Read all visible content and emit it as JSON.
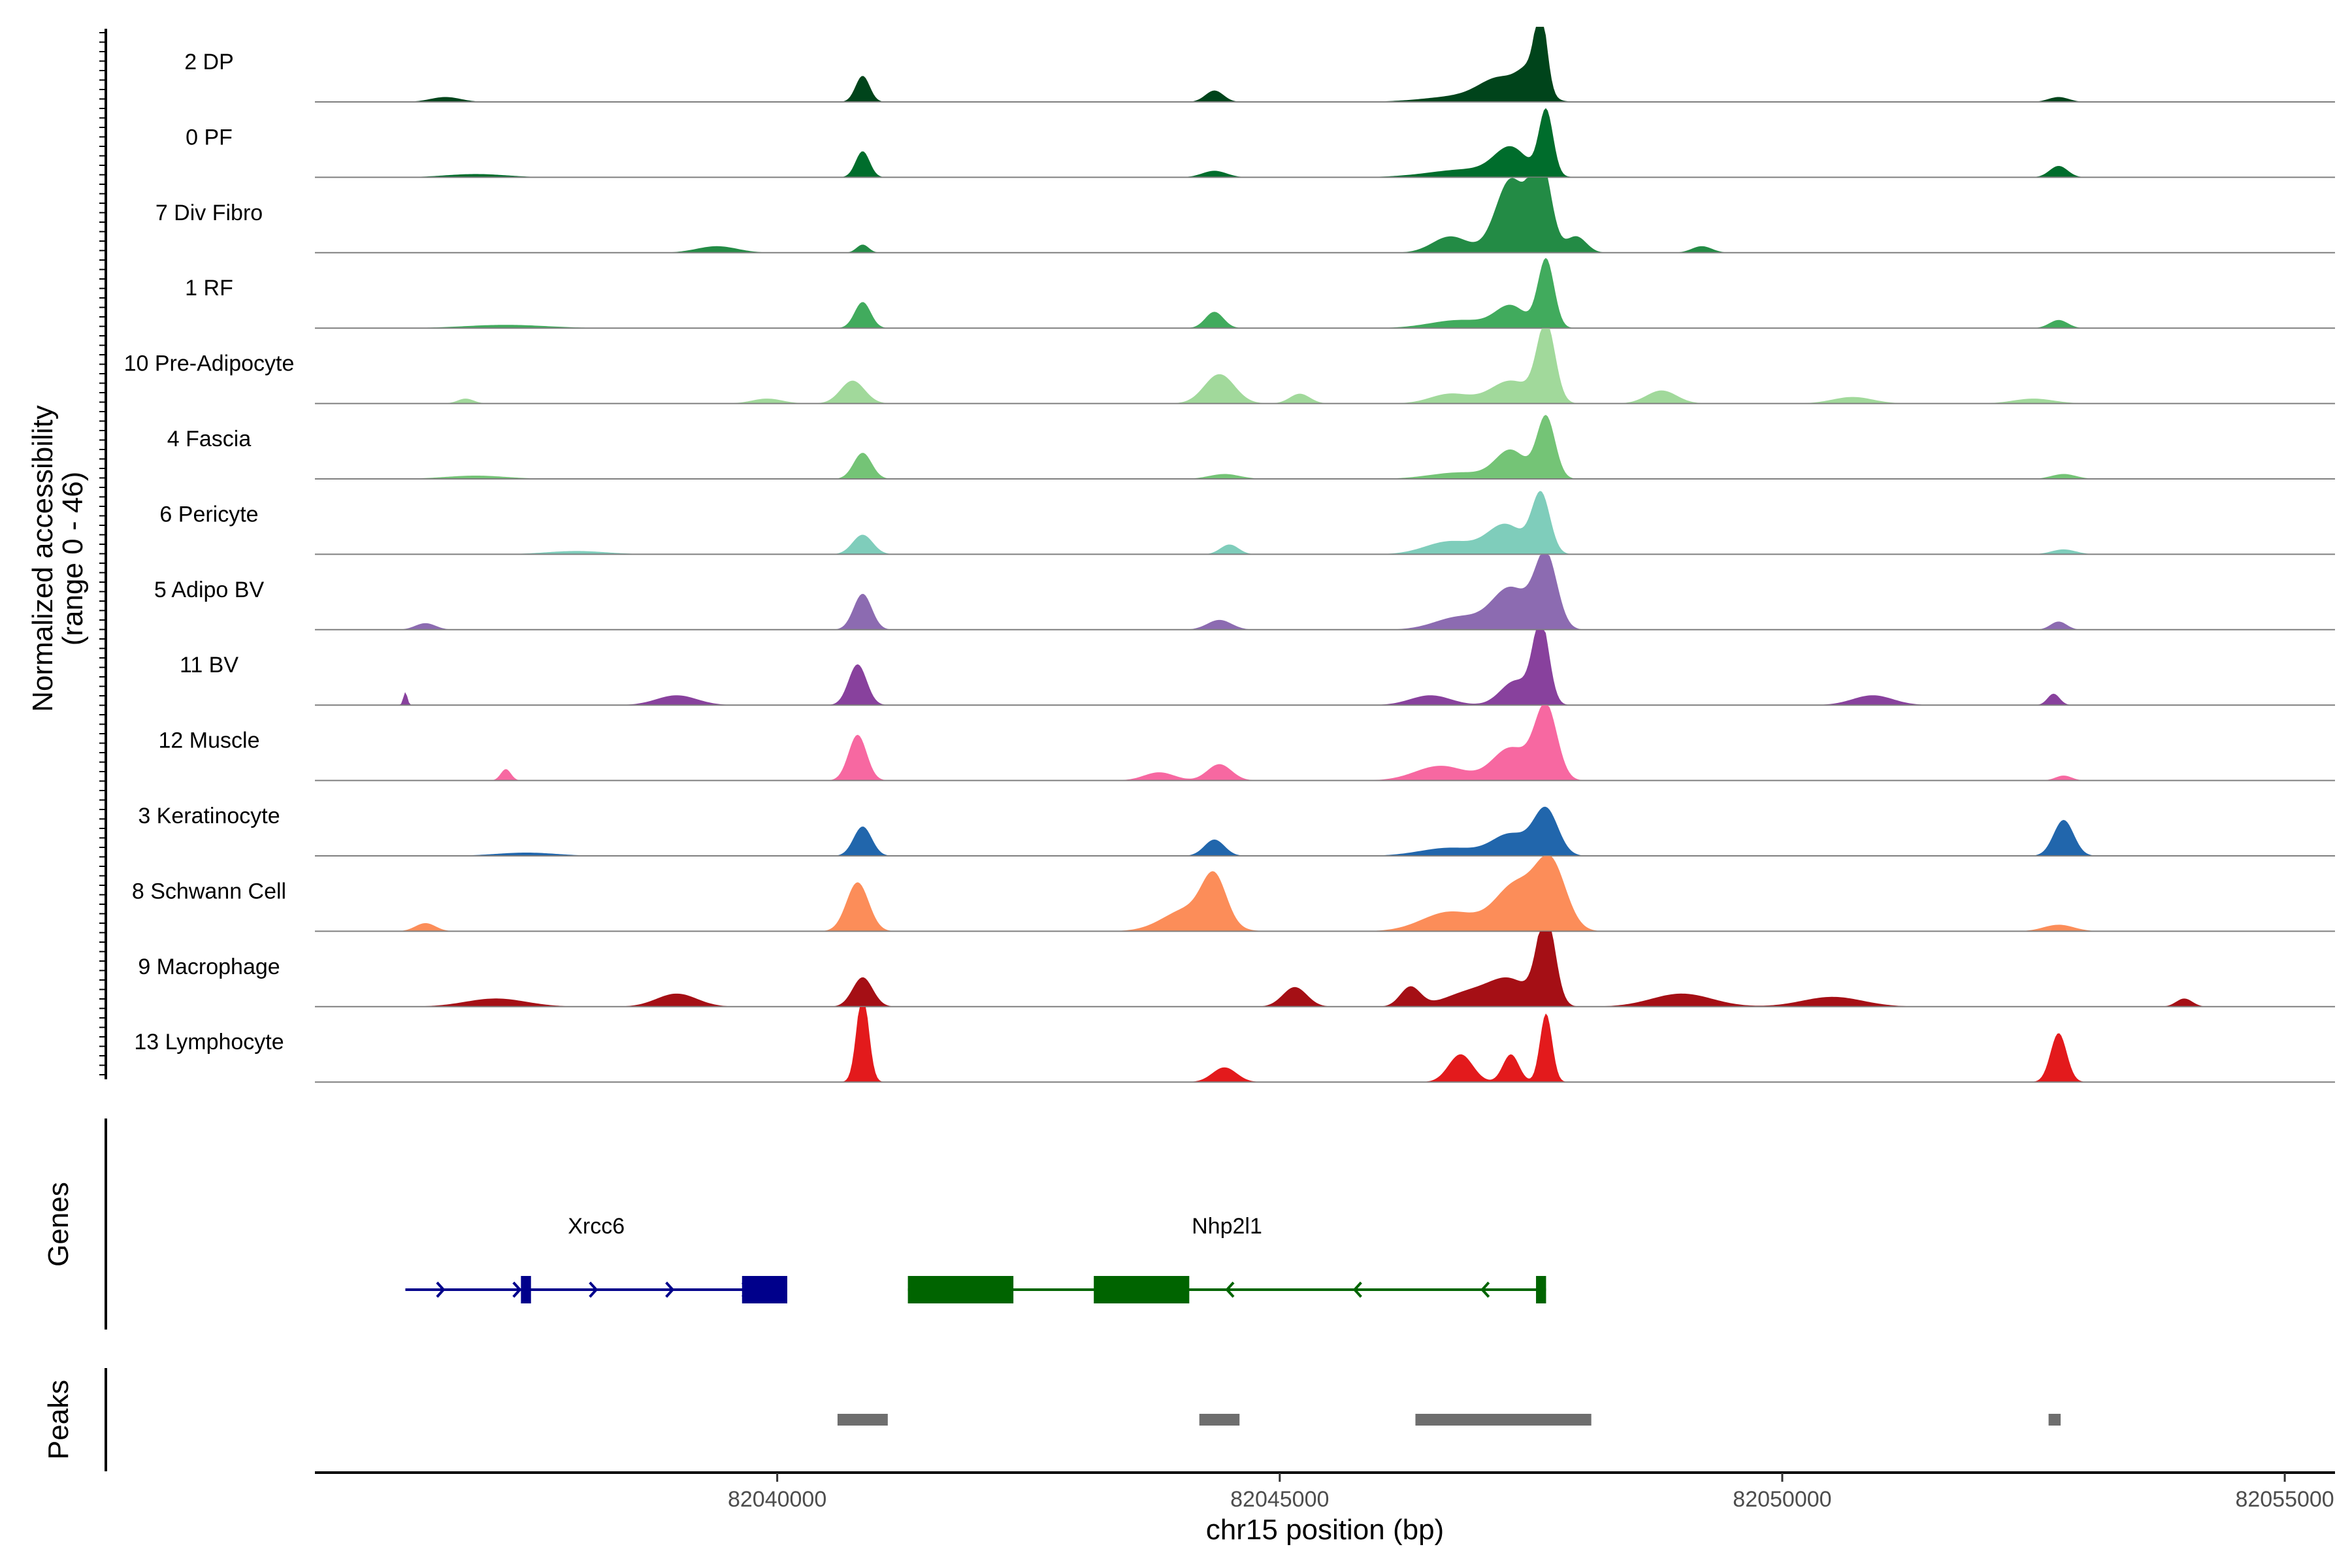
{
  "chart_data": {
    "type": "area",
    "region": {
      "chrom": "chr15",
      "start": 82035400,
      "end": 82055500
    },
    "ylabel_line1": "Normalized accessibility",
    "ylabel_line2": "(range 0 - 46)",
    "ylim": [
      0,
      46
    ],
    "xlabel": "chr15 position (bp)",
    "xticks": [
      82040000,
      82045000,
      82050000,
      82055000
    ],
    "xtick_labels": [
      "82040000",
      "82045000",
      "82050000",
      "82055000"
    ],
    "series": [
      {
        "name": "2 DP",
        "color": "#00441b",
        "peaks": [
          [
            82036700,
            3,
            150
          ],
          [
            82040850,
            16,
            70
          ],
          [
            82044350,
            7,
            90
          ],
          [
            82046900,
            4,
            400
          ],
          [
            82047200,
            12,
            200
          ],
          [
            82047500,
            16,
            120
          ],
          [
            82047600,
            43,
            60
          ],
          [
            82052750,
            3,
            100
          ]
        ]
      },
      {
        "name": "0 PF",
        "color": "#006d2c",
        "peaks": [
          [
            82037000,
            2,
            300
          ],
          [
            82040850,
            16,
            70
          ],
          [
            82044350,
            4,
            120
          ],
          [
            82046900,
            5,
            400
          ],
          [
            82047300,
            16,
            160
          ],
          [
            82047650,
            40,
            70
          ],
          [
            82052750,
            7,
            90
          ]
        ]
      },
      {
        "name": "7 Div Fibro",
        "color": "#238b45",
        "peaks": [
          [
            82039400,
            4,
            200
          ],
          [
            82040850,
            5,
            60
          ],
          [
            82046700,
            10,
            180
          ],
          [
            82047300,
            45,
            150
          ],
          [
            82047600,
            55,
            100
          ],
          [
            82047950,
            10,
            100
          ],
          [
            82049200,
            4,
            100
          ]
        ]
      },
      {
        "name": "1 RF",
        "color": "#41ab5d",
        "peaks": [
          [
            82037300,
            2,
            400
          ],
          [
            82040850,
            16,
            80
          ],
          [
            82044350,
            10,
            90
          ],
          [
            82046800,
            5,
            300
          ],
          [
            82047300,
            13,
            150
          ],
          [
            82047650,
            42,
            80
          ],
          [
            82052750,
            5,
            90
          ]
        ]
      },
      {
        "name": "10 Pre-Adipocyte",
        "color": "#a1d99b",
        "peaks": [
          [
            82036900,
            3,
            80
          ],
          [
            82039900,
            3,
            150
          ],
          [
            82040750,
            14,
            120
          ],
          [
            82044400,
            18,
            150
          ],
          [
            82045200,
            6,
            100
          ],
          [
            82046700,
            6,
            200
          ],
          [
            82047300,
            14,
            200
          ],
          [
            82047650,
            48,
            90
          ],
          [
            82048800,
            8,
            150
          ],
          [
            82050700,
            4,
            200
          ],
          [
            82052500,
            3,
            200
          ]
        ]
      },
      {
        "name": "4 Fascia",
        "color": "#74c476",
        "peaks": [
          [
            82037000,
            2,
            300
          ],
          [
            82040850,
            16,
            90
          ],
          [
            82044450,
            3,
            150
          ],
          [
            82046800,
            4,
            300
          ],
          [
            82047300,
            17,
            150
          ],
          [
            82047650,
            38,
            90
          ],
          [
            82052800,
            3,
            120
          ]
        ]
      },
      {
        "name": "6 Pericyte",
        "color": "#7fcdbb",
        "peaks": [
          [
            82038000,
            2,
            300
          ],
          [
            82040850,
            12,
            100
          ],
          [
            82044500,
            6,
            90
          ],
          [
            82046700,
            8,
            250
          ],
          [
            82047250,
            18,
            180
          ],
          [
            82047600,
            36,
            90
          ],
          [
            82052800,
            3,
            120
          ]
        ]
      },
      {
        "name": "5 Adipo BV",
        "color": "#8c6bb1",
        "peaks": [
          [
            82036500,
            4,
            100
          ],
          [
            82040850,
            22,
            90
          ],
          [
            82044400,
            6,
            120
          ],
          [
            82046800,
            8,
            250
          ],
          [
            82047300,
            25,
            180
          ],
          [
            82047650,
            45,
            110
          ],
          [
            82052750,
            5,
            80
          ]
        ]
      },
      {
        "name": "11 BV",
        "color": "#88419d",
        "peaks": [
          [
            82036300,
            8,
            20
          ],
          [
            82039000,
            6,
            200
          ],
          [
            82040800,
            25,
            90
          ],
          [
            82046500,
            6,
            200
          ],
          [
            82047350,
            15,
            150
          ],
          [
            82047600,
            50,
            80
          ],
          [
            82050900,
            6,
            200
          ],
          [
            82052700,
            7,
            60
          ]
        ]
      },
      {
        "name": "12 Muscle",
        "color": "#f768a1",
        "peaks": [
          [
            82037300,
            7,
            50
          ],
          [
            82040800,
            28,
            90
          ],
          [
            82043800,
            5,
            150
          ],
          [
            82044400,
            10,
            120
          ],
          [
            82046600,
            9,
            250
          ],
          [
            82047300,
            20,
            180
          ],
          [
            82047650,
            45,
            110
          ],
          [
            82052800,
            3,
            80
          ]
        ]
      },
      {
        "name": "3 Keratinocyte",
        "color": "#2166ac",
        "peaks": [
          [
            82037500,
            2,
            300
          ],
          [
            82040850,
            18,
            90
          ],
          [
            82044350,
            10,
            100
          ],
          [
            82046700,
            5,
            300
          ],
          [
            82047300,
            13,
            180
          ],
          [
            82047650,
            28,
            120
          ],
          [
            82052800,
            22,
            100
          ]
        ]
      },
      {
        "name": "8 Schwann Cell",
        "color": "#fc8d59",
        "peaks": [
          [
            82036500,
            5,
            100
          ],
          [
            82040800,
            30,
            110
          ],
          [
            82044100,
            14,
            250
          ],
          [
            82044350,
            28,
            120
          ],
          [
            82046700,
            12,
            280
          ],
          [
            82047350,
            28,
            200
          ],
          [
            82047700,
            40,
            150
          ],
          [
            82052750,
            4,
            150
          ]
        ]
      },
      {
        "name": "9 Macrophage",
        "color": "#a50f15",
        "peaks": [
          [
            82037200,
            5,
            300
          ],
          [
            82039000,
            8,
            200
          ],
          [
            82040850,
            18,
            100
          ],
          [
            82045150,
            12,
            120
          ],
          [
            82046300,
            12,
            100
          ],
          [
            82046900,
            9,
            250
          ],
          [
            82047300,
            15,
            200
          ],
          [
            82047650,
            55,
            90
          ],
          [
            82049000,
            8,
            300
          ],
          [
            82050500,
            6,
            300
          ],
          [
            82054000,
            5,
            80
          ]
        ]
      },
      {
        "name": "13 Lymphocyte",
        "color": "#e31a1c",
        "peaks": [
          [
            82040850,
            55,
            60
          ],
          [
            82044450,
            9,
            120
          ],
          [
            82046800,
            17,
            120
          ],
          [
            82047300,
            17,
            80
          ],
          [
            82047650,
            42,
            60
          ],
          [
            82052750,
            30,
            80
          ]
        ]
      }
    ],
    "genes": {
      "ylabel": "Genes",
      "items": [
        {
          "name": "Xrcc6",
          "strand": "+",
          "start": 82036300,
          "end": 82040100,
          "color": "#00008b",
          "exons": [
            [
              82037450,
              82037550
            ],
            [
              82039650,
              82040100
            ]
          ]
        },
        {
          "name": "Nhp2l1",
          "strand": "-",
          "start": 82041300,
          "end": 82047650,
          "color": "#006400",
          "exons": [
            [
              82041300,
              82042350
            ],
            [
              82043150,
              82044100
            ],
            [
              82047550,
              82047650
            ]
          ]
        }
      ]
    },
    "peaks_track": {
      "ylabel": "Peaks",
      "color": "#6e6e6e",
      "regions": [
        [
          82040600,
          82041100
        ],
        [
          82044200,
          82044600
        ],
        [
          82046350,
          82048100
        ],
        [
          82052650,
          82052770
        ]
      ]
    }
  }
}
